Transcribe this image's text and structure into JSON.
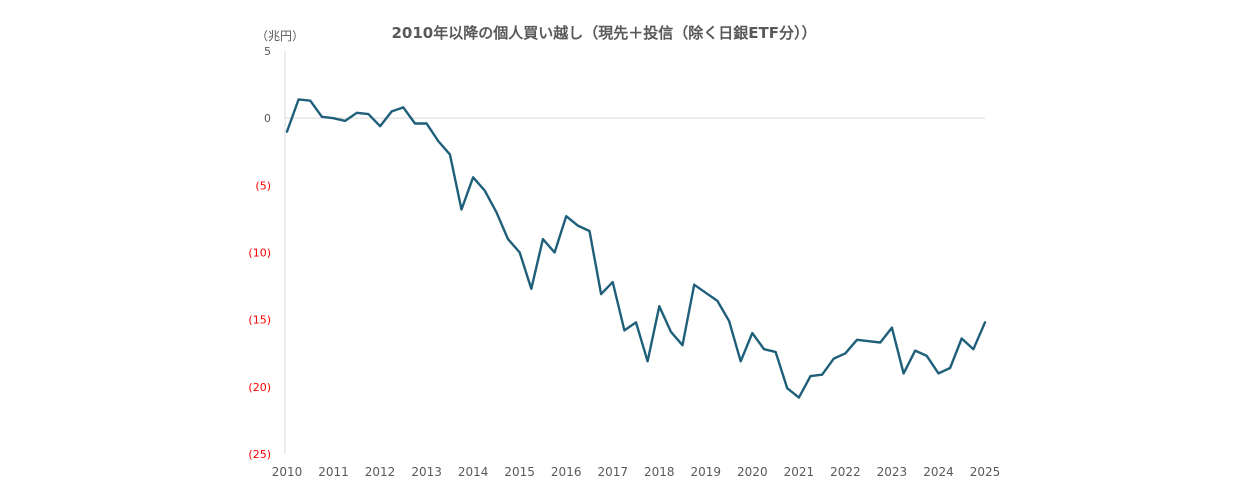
{
  "chart_data": {
    "type": "line",
    "title": "2010年以降の個人買い越し（現先＋投信（除く日銀ETF分））",
    "unit_label": "（兆円）",
    "xlabel": "",
    "ylabel": "",
    "ylim": [
      -25,
      5
    ],
    "xlim": [
      2010,
      2025
    ],
    "y_ticks": [
      {
        "value": 5,
        "label": "5"
      },
      {
        "value": 0,
        "label": "0"
      },
      {
        "value": -5,
        "label": "(5)"
      },
      {
        "value": -10,
        "label": "(10)"
      },
      {
        "value": -15,
        "label": "(15)"
      },
      {
        "value": -20,
        "label": "(20)"
      },
      {
        "value": -25,
        "label": "(25)"
      }
    ],
    "x_ticks": [
      "2010",
      "2011",
      "2012",
      "2013",
      "2014",
      "2015",
      "2016",
      "2017",
      "2018",
      "2019",
      "2020",
      "2021",
      "2022",
      "2023",
      "2024",
      "2025"
    ],
    "grid": false,
    "zero_line": true,
    "series": [
      {
        "color": "#1f5f7a",
        "x": [
          2010.0,
          2010.25,
          2010.5,
          2010.75,
          2011.0,
          2011.25,
          2011.5,
          2011.75,
          2012.0,
          2012.25,
          2012.5,
          2012.75,
          2013.0,
          2013.25,
          2013.5,
          2013.75,
          2014.0,
          2014.25,
          2014.5,
          2014.75,
          2015.0,
          2015.25,
          2015.5,
          2015.75,
          2016.0,
          2016.25,
          2016.5,
          2016.75,
          2017.0,
          2017.25,
          2017.5,
          2017.75,
          2018.0,
          2018.25,
          2018.5,
          2018.75,
          2019.0,
          2019.25,
          2019.5,
          2019.75,
          2020.0,
          2020.25,
          2020.5,
          2020.75,
          2021.0,
          2021.25,
          2021.5,
          2021.75,
          2022.0,
          2022.25,
          2022.5,
          2022.75,
          2023.0,
          2023.25,
          2023.5,
          2023.75,
          2024.0,
          2024.25,
          2024.5,
          2024.75,
          2025.0
        ],
        "values": [
          -1.0,
          1.4,
          1.3,
          0.1,
          0.0,
          -0.2,
          0.4,
          0.3,
          -0.6,
          0.5,
          0.8,
          -0.4,
          -0.4,
          -1.7,
          -2.7,
          -6.8,
          -4.4,
          -5.4,
          -7.0,
          -9.0,
          -10.0,
          -12.7,
          -9.0,
          -10.0,
          -7.3,
          -8.0,
          -8.4,
          -13.1,
          -12.2,
          -15.8,
          -15.2,
          -18.1,
          -14.0,
          -15.9,
          -16.9,
          -12.4,
          -13.0,
          -13.6,
          -15.1,
          -18.1,
          -16.0,
          -17.2,
          -17.4,
          -20.1,
          -20.8,
          -19.2,
          -19.1,
          -17.9,
          -17.5,
          -16.5,
          -16.6,
          -16.7,
          -15.6,
          -19.0,
          -17.3,
          -17.7,
          -19.0,
          -18.6,
          -16.4,
          -17.2,
          -15.2
        ]
      }
    ],
    "colors": {
      "line": "#1f5f7a",
      "negative_tick": "#ff0000",
      "positive_tick": "#595959",
      "axis": "#d9d9d9",
      "text": "#595959"
    }
  }
}
